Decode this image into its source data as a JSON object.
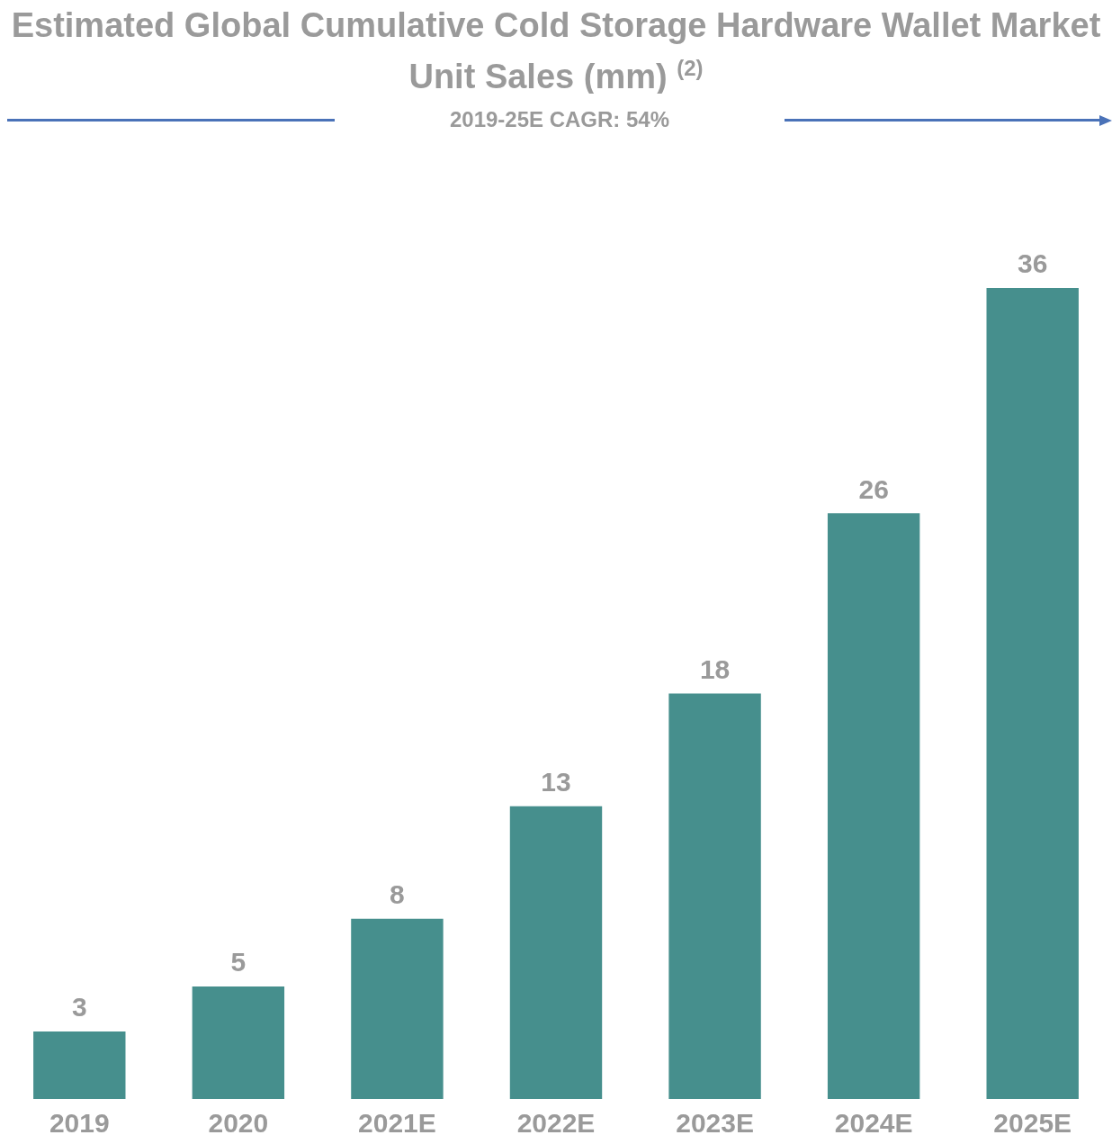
{
  "chart_data": {
    "type": "bar",
    "title": "Estimated Global Cumulative Cold Storage Hardware Wallet Market Unit Sales (mm) $^{(2)}$",
    "categories": [
      "2019",
      "2020",
      "2021E",
      "2022E",
      "2023E",
      "2024E",
      "2025E"
    ],
    "values": [
      3,
      5,
      8,
      13,
      18,
      26,
      36
    ],
    "color": "#468f8d",
    "data_labels": true,
    "annotations": [
      "2019-25E CAGR: 54%"
    ]
  }
}
